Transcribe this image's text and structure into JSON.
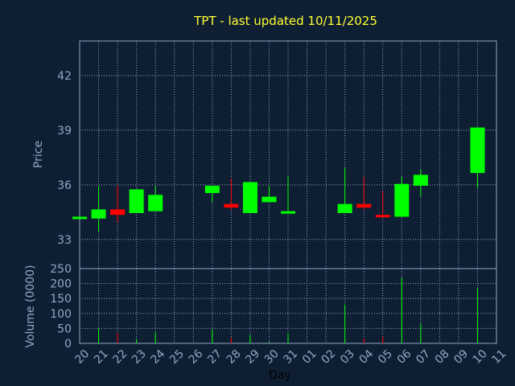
{
  "chart_data": {
    "type": "candlestick",
    "title": "TPT - last updated 10/11/2025",
    "xlabel": "Day",
    "colors": {
      "background": "#0f1f33",
      "plot_border": "#8fa7c7",
      "grid": "#8fa7c7",
      "up": "#00ff00",
      "down": "#ff0000",
      "title": "#ffff33",
      "tick_text": "#8fa7c7",
      "xlabel": "#000000"
    },
    "days": [
      "20",
      "21",
      "22",
      "23",
      "24",
      "25",
      "26",
      "27",
      "28",
      "29",
      "30",
      "31",
      "01",
      "02",
      "03",
      "04",
      "05",
      "06",
      "07",
      "08",
      "09",
      "10",
      "11"
    ],
    "price_panel": {
      "ylabel": "Price",
      "ylim": [
        31.4,
        43.9
      ],
      "yticks": [
        33,
        36,
        39,
        42
      ],
      "candles": [
        {
          "day": "20",
          "open": 34.25,
          "high": 34.25,
          "low": 34.25,
          "close": 34.25
        },
        {
          "day": "21",
          "open": 34.15,
          "high": 35.95,
          "low": 33.45,
          "close": 34.65
        },
        {
          "day": "22",
          "open": 34.65,
          "high": 35.95,
          "low": 33.95,
          "close": 34.35
        },
        {
          "day": "23",
          "open": 34.45,
          "high": 35.75,
          "low": 34.45,
          "close": 35.75
        },
        {
          "day": "24",
          "open": 34.55,
          "high": 35.95,
          "low": 34.55,
          "close": 35.45
        },
        {
          "day": "27",
          "open": 35.55,
          "high": 35.95,
          "low": 35.05,
          "close": 35.95
        },
        {
          "day": "28",
          "open": 34.95,
          "high": 36.35,
          "low": 34.65,
          "close": 34.75
        },
        {
          "day": "29",
          "open": 34.45,
          "high": 36.15,
          "low": 34.45,
          "close": 36.15
        },
        {
          "day": "30",
          "open": 35.05,
          "high": 35.95,
          "low": 35.05,
          "close": 35.35
        },
        {
          "day": "31",
          "open": 34.45,
          "high": 36.45,
          "low": 34.45,
          "close": 34.55
        },
        {
          "day": "03",
          "open": 34.45,
          "high": 36.95,
          "low": 34.45,
          "close": 34.95
        },
        {
          "day": "04",
          "open": 34.95,
          "high": 36.45,
          "low": 34.65,
          "close": 34.75
        },
        {
          "day": "05",
          "open": 34.35,
          "high": 35.65,
          "low": 34.25,
          "close": 34.25
        },
        {
          "day": "06",
          "open": 34.25,
          "high": 36.45,
          "low": 34.25,
          "close": 36.05
        },
        {
          "day": "07",
          "open": 35.95,
          "high": 36.85,
          "low": 35.35,
          "close": 36.55
        },
        {
          "day": "10",
          "open": 36.65,
          "high": 39.15,
          "low": 35.85,
          "close": 39.15
        }
      ]
    },
    "volume_panel": {
      "ylabel": "Volume (0000)",
      "ylim": [
        0,
        250
      ],
      "yticks": [
        0,
        50,
        100,
        150,
        200,
        250
      ],
      "bars": [
        {
          "day": "21",
          "value": 50,
          "color": "#00ff00"
        },
        {
          "day": "22",
          "value": 34,
          "color": "#ff0000"
        },
        {
          "day": "23",
          "value": 13,
          "color": "#00ff00"
        },
        {
          "day": "24",
          "value": 36,
          "color": "#00ff00"
        },
        {
          "day": "27",
          "value": 47,
          "color": "#00ff00"
        },
        {
          "day": "28",
          "value": 20,
          "color": "#ff0000"
        },
        {
          "day": "29",
          "value": 28,
          "color": "#00ff00"
        },
        {
          "day": "30",
          "value": 4,
          "color": "#00ff00"
        },
        {
          "day": "31",
          "value": 33,
          "color": "#00ff00"
        },
        {
          "day": "03",
          "value": 130,
          "color": "#00ff00"
        },
        {
          "day": "04",
          "value": 16,
          "color": "#ff0000"
        },
        {
          "day": "05",
          "value": 23,
          "color": "#ff0000"
        },
        {
          "day": "06",
          "value": 220,
          "color": "#00ff00"
        },
        {
          "day": "07",
          "value": 67,
          "color": "#00ff00"
        },
        {
          "day": "10",
          "value": 187,
          "color": "#00ff00"
        }
      ]
    }
  }
}
